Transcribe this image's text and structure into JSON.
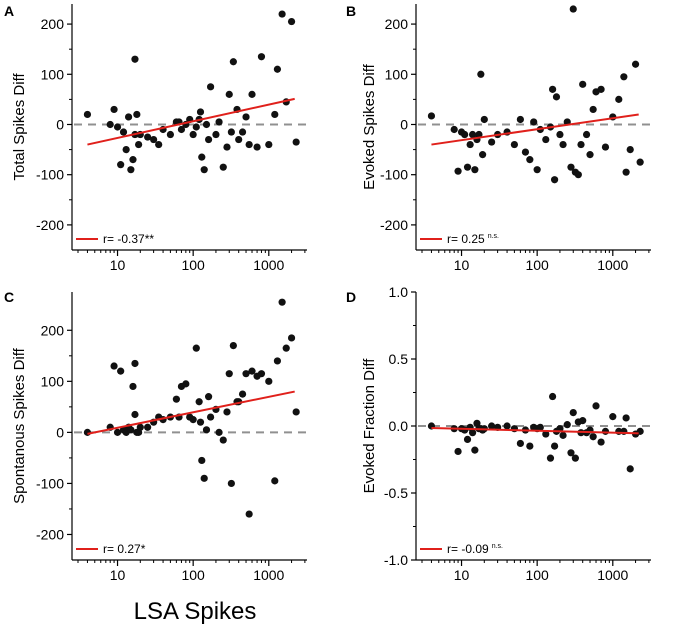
{
  "figure": {
    "shared_xlabel": "LSA Spikes",
    "colors": {
      "points": "#111111",
      "fit": "#e0201b",
      "zero_line": "#909090",
      "axis": "#000000"
    }
  },
  "chart_data": [
    {
      "panel": "A",
      "type": "scatter",
      "ylabel": "Total Spikes Diff",
      "xlabel": "",
      "xscale": "log",
      "xlim": [
        2.5,
        3200
      ],
      "ylim": [
        -250,
        240
      ],
      "yticks": [
        -200,
        -100,
        0,
        100,
        200
      ],
      "yticklabels": [
        "-200",
        "-100",
        "0",
        "100",
        "200"
      ],
      "xticks": [
        10,
        100,
        1000
      ],
      "xticklabels": [
        "10",
        "100",
        "1000"
      ],
      "zero_line": 0,
      "legend": "r= -0.37**",
      "legend_main": "r= -0.37**",
      "legend_sig": "",
      "fit": {
        "x": [
          4,
          2200
        ],
        "y": [
          -40,
          51
        ]
      },
      "x": [
        4,
        8,
        9,
        10,
        11,
        12,
        13,
        14,
        15,
        16,
        17,
        17,
        18,
        19,
        20,
        25,
        30,
        35,
        40,
        50,
        60,
        65,
        70,
        80,
        90,
        100,
        110,
        120,
        125,
        130,
        140,
        150,
        160,
        170,
        200,
        220,
        250,
        280,
        300,
        320,
        340,
        380,
        400,
        450,
        500,
        550,
        600,
        700,
        800,
        1000,
        1200,
        1300,
        1500,
        1700,
        2000,
        2300
      ],
      "y": [
        20,
        0,
        30,
        -5,
        -80,
        -15,
        -50,
        15,
        -90,
        -70,
        -20,
        130,
        20,
        -40,
        -20,
        -25,
        -30,
        -40,
        -10,
        -20,
        5,
        5,
        -10,
        0,
        10,
        -20,
        -5,
        10,
        25,
        -65,
        -90,
        0,
        -30,
        75,
        -20,
        5,
        -85,
        -45,
        60,
        -15,
        125,
        30,
        -30,
        -15,
        15,
        -40,
        60,
        -45,
        135,
        -40,
        20,
        110,
        220,
        45,
        205,
        -35
      ]
    },
    {
      "panel": "B",
      "type": "scatter",
      "ylabel": "Evoked Spikes Diff",
      "xlabel": "",
      "xscale": "log",
      "xlim": [
        2.5,
        3200
      ],
      "ylim": [
        -250,
        240
      ],
      "yticks": [
        -200,
        -100,
        0,
        100,
        200
      ],
      "yticklabels": [
        "-200",
        "-100",
        "0",
        "100",
        "200"
      ],
      "xticks": [
        10,
        100,
        1000
      ],
      "xticklabels": [
        "10",
        "100",
        "1000"
      ],
      "zero_line": 0,
      "legend": "r= 0.25 n.s.",
      "legend_main": "r= 0.25",
      "legend_sig": "n.s.",
      "fit": {
        "x": [
          4,
          2200
        ],
        "y": [
          -40,
          20
        ]
      },
      "x": [
        4,
        8,
        9,
        10,
        11,
        12,
        13,
        14,
        15,
        16,
        17,
        18,
        19,
        20,
        25,
        30,
        40,
        50,
        60,
        70,
        80,
        90,
        100,
        110,
        130,
        150,
        160,
        170,
        180,
        200,
        220,
        250,
        280,
        300,
        320,
        350,
        380,
        400,
        450,
        500,
        550,
        600,
        700,
        800,
        1000,
        1200,
        1400,
        1500,
        1700,
        2000,
        2300
      ],
      "y": [
        17,
        -10,
        -93,
        -15,
        -20,
        -85,
        -40,
        -20,
        -90,
        -30,
        -20,
        100,
        -60,
        10,
        -35,
        -20,
        -15,
        -40,
        10,
        -55,
        -70,
        5,
        -90,
        -10,
        -30,
        -5,
        70,
        -110,
        55,
        -20,
        -40,
        5,
        -85,
        230,
        -95,
        -100,
        -40,
        80,
        -20,
        -60,
        30,
        65,
        70,
        -45,
        15,
        50,
        95,
        -95,
        -50,
        120,
        -75
      ]
    },
    {
      "panel": "C",
      "type": "scatter",
      "ylabel": "Spontanous Spikes Diff",
      "xlabel": "",
      "xscale": "log",
      "xlim": [
        2.5,
        3200
      ],
      "ylim": [
        -250,
        275
      ],
      "yticks": [
        -200,
        -100,
        0,
        100,
        200
      ],
      "yticklabels": [
        "-200",
        "-100",
        "0",
        "100",
        "200"
      ],
      "xticks": [
        10,
        100,
        1000
      ],
      "xticklabels": [
        "10",
        "100",
        "1000"
      ],
      "zero_line": 0,
      "legend": "r= 0.27*",
      "legend_main": "r= 0.27*",
      "legend_sig": "",
      "fit": {
        "x": [
          4,
          2200
        ],
        "y": [
          -3,
          80
        ]
      },
      "x": [
        4,
        8,
        9,
        10,
        11,
        12,
        13,
        14,
        15,
        16,
        17,
        17,
        18,
        19,
        20,
        25,
        30,
        35,
        40,
        50,
        60,
        65,
        70,
        80,
        90,
        100,
        110,
        120,
        125,
        130,
        140,
        150,
        160,
        170,
        200,
        220,
        250,
        280,
        300,
        320,
        340,
        380,
        400,
        450,
        500,
        550,
        600,
        700,
        800,
        1000,
        1200,
        1300,
        1500,
        1700,
        2000,
        2300
      ],
      "y": [
        0,
        10,
        130,
        0,
        120,
        5,
        0,
        10,
        5,
        90,
        35,
        135,
        0,
        0,
        10,
        10,
        20,
        30,
        25,
        30,
        65,
        30,
        90,
        95,
        30,
        25,
        165,
        60,
        20,
        -55,
        -90,
        5,
        70,
        30,
        45,
        0,
        -15,
        40,
        115,
        -100,
        170,
        60,
        60,
        75,
        115,
        -160,
        120,
        110,
        115,
        100,
        -95,
        140,
        255,
        165,
        185,
        40
      ]
    },
    {
      "panel": "D",
      "type": "scatter",
      "ylabel": "Evoked Fraction Diff",
      "xlabel": "",
      "xscale": "log",
      "xlim": [
        2.5,
        3200
      ],
      "ylim": [
        -1.0,
        1.0
      ],
      "yticks": [
        -1.0,
        -0.5,
        0.0,
        0.5,
        1.0
      ],
      "yticklabels": [
        "-1.0",
        "-0.5",
        "0.0",
        "0.5",
        "1.0"
      ],
      "xticks": [
        10,
        100,
        1000
      ],
      "xticklabels": [
        "10",
        "100",
        "1000"
      ],
      "zero_line": 0,
      "legend": "r= -0.09 n.s.",
      "legend_main": "r= -0.09",
      "legend_sig": "n.s.",
      "fit": {
        "x": [
          4,
          2200
        ],
        "y": [
          -0.015,
          -0.055
        ]
      },
      "x": [
        4,
        8,
        9,
        10,
        11,
        12,
        13,
        14,
        15,
        16,
        17,
        18,
        19,
        20,
        25,
        30,
        40,
        50,
        60,
        70,
        80,
        90,
        100,
        110,
        130,
        150,
        160,
        170,
        180,
        200,
        220,
        250,
        280,
        300,
        320,
        350,
        380,
        400,
        450,
        500,
        550,
        600,
        700,
        800,
        1000,
        1200,
        1400,
        1500,
        1700,
        2000,
        2300
      ],
      "y": [
        0,
        -0.02,
        -0.19,
        -0.02,
        -0.03,
        -0.1,
        -0.01,
        -0.05,
        -0.18,
        0.02,
        -0.02,
        -0.02,
        -0.03,
        -0.02,
        0,
        -0.01,
        0,
        -0.02,
        -0.13,
        -0.03,
        -0.15,
        -0.01,
        -0.02,
        -0.01,
        -0.06,
        -0.24,
        0.22,
        -0.15,
        -0.04,
        -0.02,
        -0.07,
        0.01,
        -0.2,
        0.1,
        -0.24,
        0.03,
        -0.05,
        0.04,
        -0.05,
        -0.03,
        -0.08,
        0.15,
        -0.12,
        -0.04,
        0.07,
        -0.04,
        -0.04,
        0.06,
        -0.32,
        -0.06,
        -0.04
      ]
    }
  ]
}
